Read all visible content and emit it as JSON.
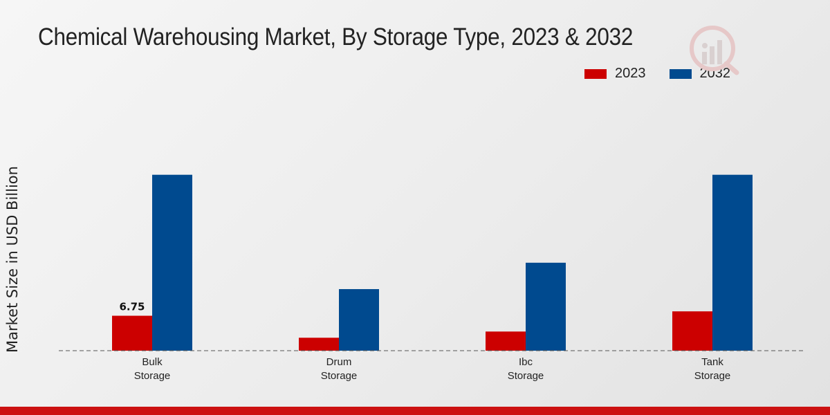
{
  "chart_data": {
    "type": "bar",
    "title": "Chemical Warehousing Market, By Storage Type, 2023 & 2032",
    "ylabel": "Market Size in USD Billion",
    "xlabel": "",
    "categories": [
      "Bulk Storage",
      "Drum Storage",
      "Ibc Storage",
      "Tank Storage"
    ],
    "category_lines": [
      [
        "Bulk",
        "Storage"
      ],
      [
        "Drum",
        "Storage"
      ],
      [
        "Ibc",
        "Storage"
      ],
      [
        "Tank",
        "Storage"
      ]
    ],
    "series": [
      {
        "name": "2023",
        "color": "#cc0000",
        "values": [
          6.75,
          2.5,
          3.7,
          7.6
        ]
      },
      {
        "name": "2032",
        "color": "#004a8f",
        "values": [
          34.0,
          11.9,
          17.0,
          34.0
        ]
      }
    ],
    "data_labels": [
      {
        "series": 0,
        "index": 0,
        "text": "6.75"
      }
    ],
    "ylim": [
      0,
      50
    ],
    "grid": false,
    "legend_position": "top-right",
    "baseline_style": "dashed"
  }
}
